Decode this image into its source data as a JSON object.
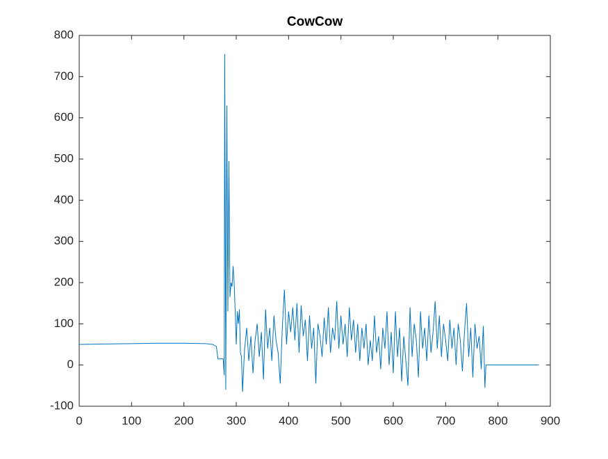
{
  "chart_data": {
    "type": "line",
    "title": "CowCow",
    "x": [
      0,
      50,
      100,
      150,
      200,
      240,
      255,
      262,
      265,
      275,
      277,
      278,
      280,
      282,
      284,
      286,
      288,
      290,
      292,
      294,
      296,
      298,
      300,
      302,
      304,
      306,
      308,
      310,
      312,
      316,
      320,
      324,
      328,
      332,
      336,
      340,
      344,
      348,
      352,
      356,
      360,
      364,
      368,
      372,
      376,
      380,
      384,
      388,
      392,
      396,
      400,
      404,
      408,
      412,
      416,
      420,
      424,
      428,
      432,
      436,
      440,
      444,
      448,
      452,
      456,
      460,
      464,
      468,
      472,
      476,
      480,
      484,
      488,
      492,
      496,
      500,
      504,
      508,
      512,
      516,
      520,
      524,
      528,
      532,
      536,
      540,
      544,
      548,
      552,
      556,
      560,
      564,
      568,
      572,
      576,
      580,
      584,
      588,
      592,
      596,
      600,
      604,
      608,
      612,
      616,
      620,
      624,
      628,
      632,
      636,
      640,
      644,
      648,
      652,
      656,
      660,
      664,
      668,
      672,
      676,
      680,
      684,
      688,
      692,
      696,
      700,
      704,
      708,
      712,
      716,
      720,
      724,
      728,
      732,
      736,
      740,
      744,
      748,
      752,
      756,
      760,
      764,
      768,
      772,
      775,
      777,
      800,
      850,
      878
    ],
    "series": [
      {
        "name": "CowCow",
        "color": "#0072bd",
        "values": [
          50,
          51,
          52,
          53,
          53,
          52,
          50,
          45,
          15,
          15,
          -25,
          755,
          -60,
          630,
          130,
          495,
          165,
          200,
          190,
          240,
          200,
          130,
          50,
          130,
          100,
          135,
          30,
          20,
          -65,
          40,
          90,
          10,
          70,
          -20,
          60,
          100,
          20,
          80,
          -35,
          135,
          40,
          90,
          10,
          120,
          60,
          30,
          -45,
          90,
          183,
          50,
          130,
          80,
          140,
          60,
          150,
          30,
          145,
          70,
          110,
          10,
          120,
          40,
          90,
          -45,
          100,
          70,
          20,
          115,
          50,
          140,
          30,
          90,
          60,
          155,
          40,
          120,
          50,
          100,
          20,
          140,
          60,
          110,
          30,
          100,
          10,
          90,
          40,
          100,
          0,
          60,
          10,
          120,
          30,
          70,
          -10,
          90,
          40,
          130,
          0,
          80,
          -20,
          130,
          20,
          90,
          -40,
          70,
          10,
          -50,
          140,
          20,
          100,
          60,
          -30,
          130,
          40,
          90,
          10,
          120,
          30,
          80,
          155,
          40,
          120,
          20,
          100,
          60,
          10,
          110,
          40,
          90,
          0,
          100,
          60,
          -15,
          80,
          150,
          20,
          90,
          -30,
          100,
          40,
          70,
          -10,
          95,
          -55,
          0,
          0,
          0,
          0
        ]
      }
    ],
    "xlim": [
      0,
      900
    ],
    "ylim": [
      -100,
      800
    ],
    "xticks": [
      0,
      100,
      200,
      300,
      400,
      500,
      600,
      700,
      800,
      900
    ],
    "yticks": [
      -100,
      0,
      100,
      200,
      300,
      400,
      500,
      600,
      700,
      800
    ]
  }
}
